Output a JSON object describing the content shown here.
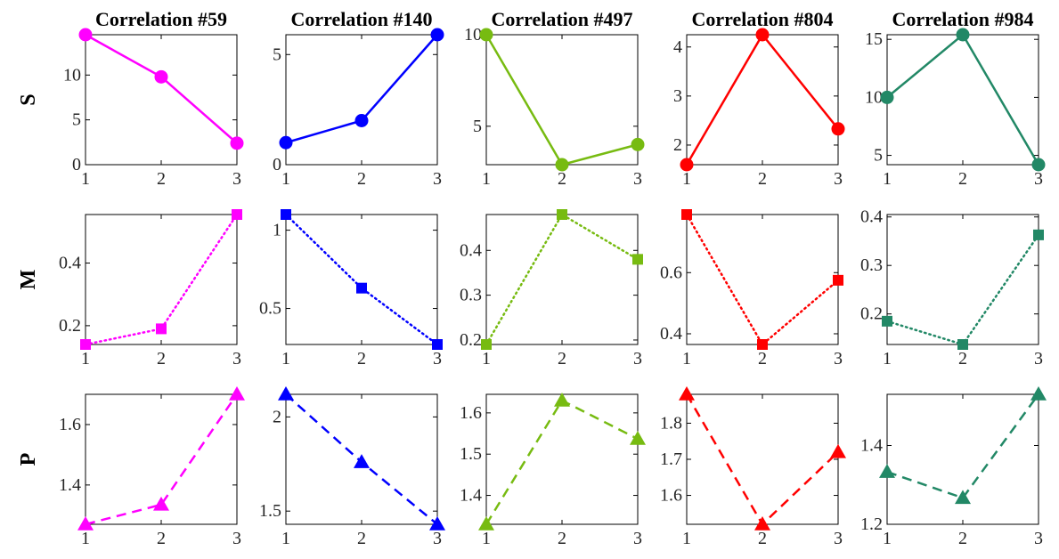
{
  "chart_data": {
    "type": "line",
    "columns": [
      {
        "title": "Correlation #59",
        "color": "#ff00ff"
      },
      {
        "title": "Correlation #140",
        "color": "#0000ff"
      },
      {
        "title": "Correlation #497",
        "color": "#77bb11"
      },
      {
        "title": "Correlation #804",
        "color": "#ff0000"
      },
      {
        "title": "Correlation #984",
        "color": "#228866"
      }
    ],
    "rows": [
      {
        "label": "S",
        "line_style": "solid",
        "marker": "circle"
      },
      {
        "label": "M",
        "line_style": "dotted",
        "marker": "square"
      },
      {
        "label": "P",
        "line_style": "dashed",
        "marker": "triangle"
      }
    ],
    "x": [
      1,
      2,
      3
    ],
    "x_ticks": [
      "1",
      "2",
      "3"
    ],
    "panels": [
      [
        {
          "values": [
            14.5,
            9.8,
            2.4
          ],
          "ylim": [
            0,
            14.5
          ],
          "y_ticks": [
            0,
            5,
            10
          ],
          "y_tick_labels": [
            "0",
            "5",
            "10"
          ]
        },
        {
          "values": [
            1.0,
            2.0,
            5.9
          ],
          "ylim": [
            0,
            5.9
          ],
          "y_ticks": [
            0,
            5
          ],
          "y_tick_labels": [
            "0",
            "5"
          ]
        },
        {
          "values": [
            10.0,
            2.9,
            4.0
          ],
          "ylim": [
            2.9,
            10.0
          ],
          "y_ticks": [
            5,
            10
          ],
          "y_tick_labels": [
            "5",
            "10"
          ]
        },
        {
          "values": [
            1.6,
            4.25,
            2.33
          ],
          "ylim": [
            1.6,
            4.25
          ],
          "y_ticks": [
            2,
            3,
            4
          ],
          "y_tick_labels": [
            "2",
            "3",
            "4"
          ]
        },
        {
          "values": [
            10.0,
            15.4,
            4.2
          ],
          "ylim": [
            4.2,
            15.4
          ],
          "y_ticks": [
            5,
            10,
            15
          ],
          "y_tick_labels": [
            "5",
            "10",
            "15"
          ]
        }
      ],
      [
        {
          "values": [
            0.14,
            0.19,
            0.555
          ],
          "ylim": [
            0.14,
            0.555
          ],
          "y_ticks": [
            0.2,
            0.4
          ],
          "y_tick_labels": [
            "0.2",
            "0.4"
          ]
        },
        {
          "values": [
            1.1,
            0.63,
            0.27
          ],
          "ylim": [
            0.27,
            1.1
          ],
          "y_ticks": [
            0.5,
            1
          ],
          "y_tick_labels": [
            "0.5",
            "1"
          ]
        },
        {
          "values": [
            0.19,
            0.48,
            0.38
          ],
          "ylim": [
            0.19,
            0.48
          ],
          "y_ticks": [
            0.2,
            0.3,
            0.4
          ],
          "y_tick_labels": [
            "0.2",
            "0.3",
            "0.4"
          ]
        },
        {
          "values": [
            0.79,
            0.365,
            0.575
          ],
          "ylim": [
            0.365,
            0.79
          ],
          "y_ticks": [
            0.4,
            0.6
          ],
          "y_tick_labels": [
            "0.4",
            "0.6"
          ]
        },
        {
          "values": [
            0.185,
            0.137,
            0.363
          ],
          "ylim": [
            0.137,
            0.405
          ],
          "y_ticks": [
            0.2,
            0.3,
            0.4
          ],
          "y_tick_labels": [
            "0.2",
            "0.3",
            "0.4"
          ]
        }
      ],
      [
        {
          "values": [
            1.27,
            1.335,
            1.7
          ],
          "ylim": [
            1.27,
            1.7
          ],
          "y_ticks": [
            1.4,
            1.6
          ],
          "y_tick_labels": [
            "1.4",
            "1.6"
          ]
        },
        {
          "values": [
            2.12,
            1.76,
            1.43
          ],
          "ylim": [
            1.43,
            2.12
          ],
          "y_ticks": [
            1.5,
            2
          ],
          "y_tick_labels": [
            "1.5",
            "2"
          ]
        },
        {
          "values": [
            1.33,
            1.63,
            1.537
          ],
          "ylim": [
            1.33,
            1.645
          ],
          "y_ticks": [
            1.4,
            1.5,
            1.6
          ],
          "y_tick_labels": [
            "1.4",
            "1.5",
            "1.6"
          ]
        },
        {
          "values": [
            1.88,
            1.52,
            1.72
          ],
          "ylim": [
            1.52,
            1.88
          ],
          "y_ticks": [
            1.6,
            1.7,
            1.8
          ],
          "y_tick_labels": [
            "1.6",
            "1.7",
            "1.8"
          ]
        },
        {
          "values": [
            1.333,
            1.267,
            1.53
          ],
          "ylim": [
            1.2,
            1.53
          ],
          "y_ticks": [
            1.2,
            1.4
          ],
          "y_tick_labels": [
            "1.2",
            "1.4"
          ]
        }
      ]
    ],
    "grid": false
  }
}
